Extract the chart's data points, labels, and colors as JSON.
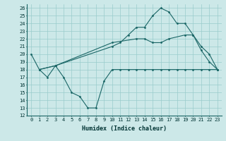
{
  "xlabel": "Humidex (Indice chaleur)",
  "bg_color": "#cce8e8",
  "grid_color": "#99cccc",
  "line_color": "#1a6666",
  "xlim": [
    -0.5,
    23.5
  ],
  "ylim": [
    12,
    26.5
  ],
  "yticks": [
    12,
    13,
    14,
    15,
    16,
    17,
    18,
    19,
    20,
    21,
    22,
    23,
    24,
    25,
    26
  ],
  "xticks": [
    0,
    1,
    2,
    3,
    4,
    5,
    6,
    7,
    8,
    9,
    10,
    11,
    12,
    13,
    14,
    15,
    16,
    17,
    18,
    19,
    20,
    21,
    22,
    23
  ],
  "line1_x": [
    0,
    1,
    2,
    3,
    4,
    5,
    6,
    7,
    8,
    9,
    10,
    11,
    12,
    13,
    14,
    15,
    16,
    17,
    18,
    19,
    20,
    21,
    22,
    23
  ],
  "line1_y": [
    20,
    18,
    17,
    18.5,
    17,
    15,
    14.5,
    13,
    13,
    16.5,
    18,
    18,
    18,
    18,
    18,
    18,
    18,
    18,
    18,
    18,
    18,
    18,
    18,
    18
  ],
  "line2_x": [
    1,
    3,
    10,
    13,
    14,
    15,
    16,
    17,
    19,
    20,
    21,
    22,
    23
  ],
  "line2_y": [
    18,
    18.5,
    21.5,
    22,
    22,
    21.5,
    21.5,
    22,
    22.5,
    22.5,
    21,
    20,
    18
  ],
  "line3_x": [
    1,
    3,
    10,
    11,
    12,
    13,
    14,
    15,
    16,
    17,
    18,
    19,
    20,
    21,
    22,
    23
  ],
  "line3_y": [
    18,
    18.5,
    21,
    21.5,
    22.5,
    23.5,
    23.5,
    25,
    26,
    25.5,
    24,
    24,
    22.5,
    20.5,
    19,
    18
  ]
}
